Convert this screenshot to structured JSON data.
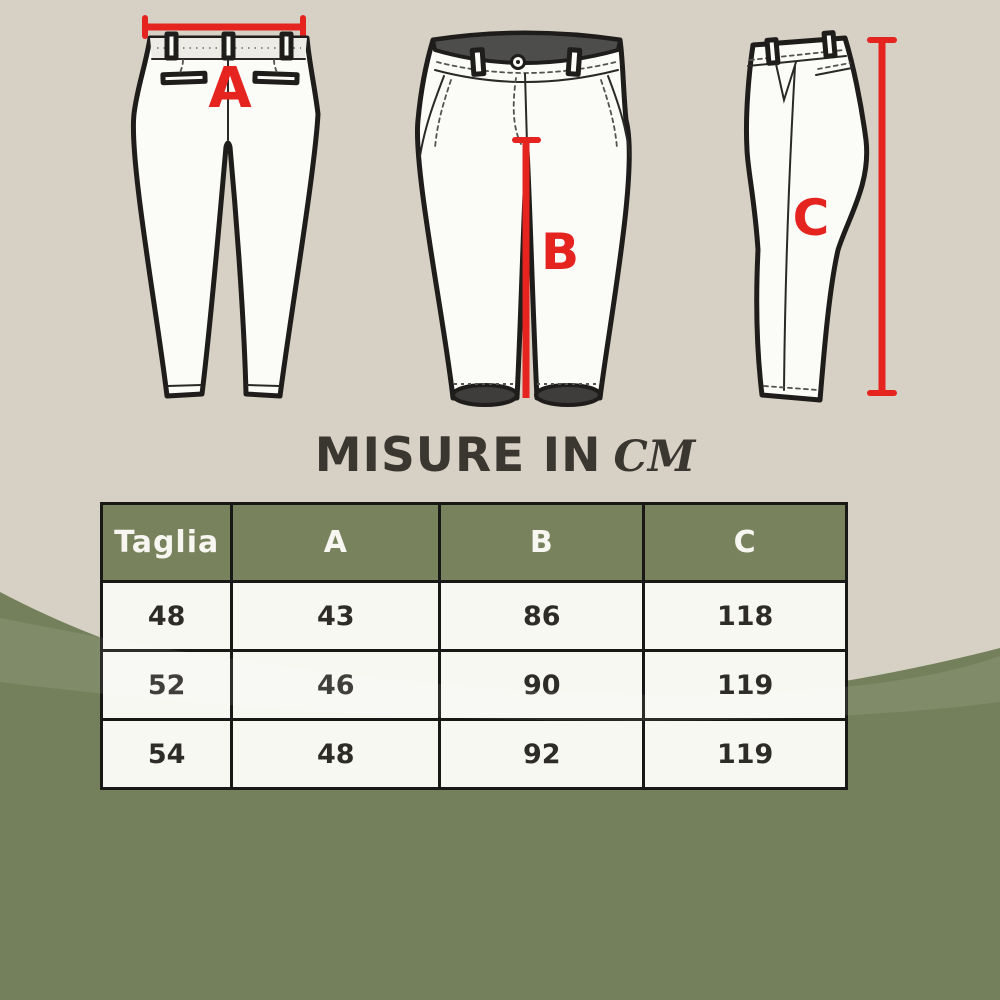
{
  "title": {
    "main": "MISURE IN",
    "unit": "CM"
  },
  "diagrams": {
    "back_view_label": "A",
    "front_view_label": "B",
    "side_view_label": "C"
  },
  "size_table": {
    "columns": [
      "Taglia",
      "A",
      "B",
      "C"
    ],
    "rows": [
      [
        "48",
        "43",
        "86",
        "118"
      ],
      [
        "52",
        "46",
        "90",
        "119"
      ],
      [
        "54",
        "48",
        "92",
        "119"
      ]
    ]
  },
  "colors": {
    "beige": "#d6d1c4",
    "green": "#74805b",
    "header_green": "#78835e",
    "red": "#e52420",
    "charcoal": "#3a3731",
    "cell_bg": "#f8f8f3",
    "cell_text": "#2e2c28",
    "header_text": "#f7f6f0"
  },
  "chart_data": {
    "type": "table",
    "title": "MISURE IN CM",
    "columns": [
      "Taglia",
      "A",
      "B",
      "C"
    ],
    "rows": [
      [
        48,
        43,
        86,
        118
      ],
      [
        52,
        46,
        90,
        119
      ],
      [
        54,
        48,
        92,
        119
      ]
    ]
  }
}
